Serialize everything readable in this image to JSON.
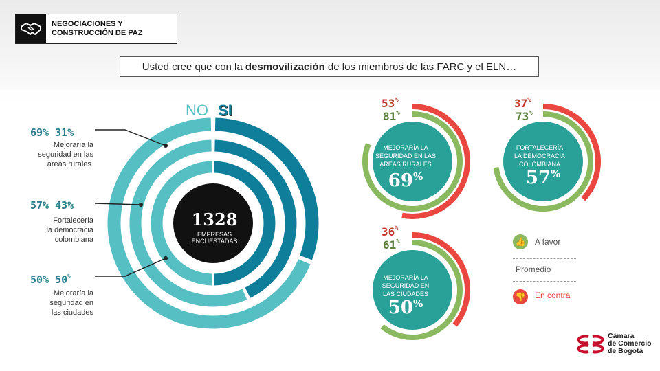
{
  "header": {
    "badge_line1": "NEGOCIACIONES Y",
    "badge_line2": "CONSTRUCCIÓN DE PAZ",
    "badge_icon": "handshake-icon"
  },
  "question": {
    "pre": "Usted cree que con la ",
    "bold": "desmovilización",
    "post": " de los miembros de las FARC y el ELN…"
  },
  "left": {
    "no_label": "NO",
    "si_label": "SI",
    "center_number": "1328",
    "center_line1": "EMPRESAS",
    "center_line2": "ENCUESTADAS",
    "items": [
      {
        "no_pct": "69%",
        "si_pct": "31%",
        "d1": "Mejoraría la",
        "d2": "seguridad en las",
        "d3": "áreas rurales."
      },
      {
        "no_pct": "57%",
        "si_pct": "43%",
        "d1": "Fortalecería",
        "d2": "la democracia",
        "d3": "colombiana"
      },
      {
        "no_pct": "50%",
        "si_pct": "50",
        "si_sup": "%",
        "d1": "Mejoraría la",
        "d2": "seguridad en",
        "d3": "las ciudades"
      }
    ]
  },
  "gauges": [
    {
      "favor": "53",
      "avg": "81",
      "unit": "%",
      "l1": "MEJORARÍA LA",
      "l2": "SEGURIDAD EN LAS",
      "l3": "ÁREAS RURALES",
      "big": "69",
      "big_unit": "%"
    },
    {
      "favor": "37",
      "avg": "73",
      "unit": "%",
      "l1": "FORTALECERÍA",
      "l2": "LA DEMOCRACIA",
      "l3": "COLOMBIANA",
      "big": "57",
      "big_unit": "%"
    },
    {
      "favor": "36",
      "avg": "61",
      "unit": "%",
      "l1": "MEJORARÍA LA",
      "l2": "SEGURIDAD EN",
      "l3": "LAS CIUDADES",
      "big": "50",
      "big_unit": "%"
    }
  ],
  "legend": {
    "favor": "A favor",
    "avg": "Promedio",
    "contra": "En contra"
  },
  "logo": {
    "line1": "Cámara",
    "line2": "de Comercio",
    "line3": "de Bogotá"
  },
  "colors": {
    "dark_teal": "#0f7e9b",
    "light_teal": "#55bfc4",
    "gauge_fill": "#2aa198",
    "red": "#e9473f",
    "green": "#8ab960",
    "red_text": "#c0392b",
    "green_text": "#5a7d3a"
  },
  "chart_data": [
    {
      "type": "pie",
      "categories": [
        "Mejoraría la seguridad en las áreas rurales.",
        "Fortalecería la democracia colombiana",
        "Mejoraría la seguridad en las ciudades"
      ],
      "series": [
        {
          "name": "NO",
          "values": [
            69,
            57,
            50
          ]
        },
        {
          "name": "SI",
          "values": [
            31,
            43,
            50
          ]
        }
      ],
      "center_text": "1328 EMPRESAS ENCUESTADAS"
    },
    {
      "type": "bar",
      "categories": [
        "MEJORARÍA LA SEGURIDAD EN LAS ÁREAS RURALES",
        "FORTALECERÍA LA DEMOCRACIA COLOMBIANA",
        "MEJORARÍA LA SEGURIDAD EN LAS CIUDADES"
      ],
      "series": [
        {
          "name": "A favor",
          "values": [
            53,
            37,
            36
          ]
        },
        {
          "name": "Promedio",
          "values": [
            81,
            73,
            61
          ]
        },
        {
          "name": "En contra",
          "values": [
            69,
            57,
            50
          ]
        }
      ]
    }
  ]
}
